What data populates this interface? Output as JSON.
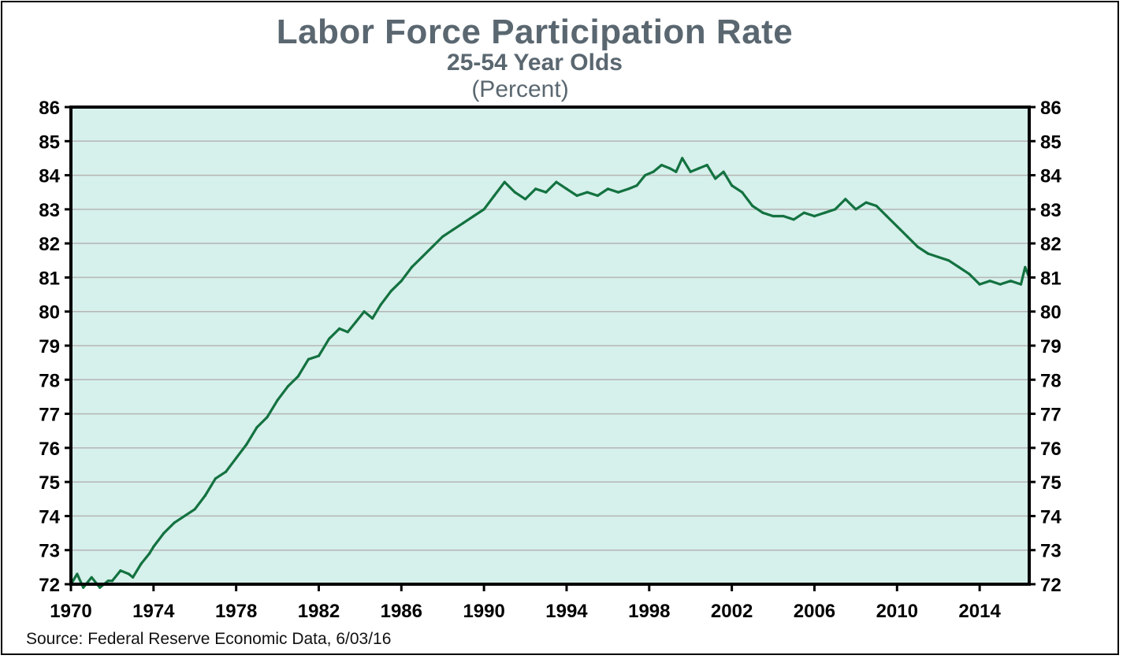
{
  "chart_data": {
    "type": "line",
    "title": "Labor Force Participation Rate",
    "subtitle": "25-54 Year Olds",
    "unit": "(Percent)",
    "source": "Source:  Federal Reserve Economic Data, 6/03/16",
    "xlim": [
      1970,
      2016.4
    ],
    "ylim": [
      72,
      86
    ],
    "x_ticks": [
      1970,
      1974,
      1978,
      1982,
      1986,
      1990,
      1994,
      1998,
      2002,
      2006,
      2010,
      2014
    ],
    "y_ticks": [
      72,
      73,
      74,
      75,
      76,
      77,
      78,
      79,
      80,
      81,
      82,
      83,
      84,
      85,
      86
    ],
    "grid": "horizontal",
    "colors": {
      "line": "#137240",
      "plot_bg": "#d6f0eb",
      "grid": "#b5b5b5",
      "title": "#5a6770"
    },
    "series": [
      {
        "x": [
          1970.0,
          1970.3,
          1970.6,
          1971.0,
          1971.4,
          1971.8,
          1972.0,
          1972.4,
          1972.8,
          1973.0,
          1973.4,
          1973.8,
          1974.0,
          1974.5,
          1975.0,
          1975.5,
          1976.0,
          1976.5,
          1977.0,
          1977.5,
          1978.0,
          1978.5,
          1979.0,
          1979.5,
          1980.0,
          1980.5,
          1981.0,
          1981.5,
          1982.0,
          1982.5,
          1983.0,
          1983.4,
          1983.8,
          1984.2,
          1984.6,
          1985.0,
          1985.5,
          1986.0,
          1986.5,
          1987.0,
          1987.5,
          1988.0,
          1988.5,
          1989.0,
          1989.5,
          1990.0,
          1990.5,
          1991.0,
          1991.5,
          1992.0,
          1992.5,
          1993.0,
          1993.5,
          1994.0,
          1994.5,
          1995.0,
          1995.5,
          1996.0,
          1996.5,
          1997.0,
          1997.4,
          1997.8,
          1998.2,
          1998.6,
          1999.0,
          1999.3,
          1999.6,
          2000.0,
          2000.4,
          2000.8,
          2001.2,
          2001.6,
          2002.0,
          2002.5,
          2003.0,
          2003.5,
          2004.0,
          2004.5,
          2005.0,
          2005.5,
          2006.0,
          2006.5,
          2007.0,
          2007.5,
          2008.0,
          2008.5,
          2009.0,
          2009.5,
          2010.0,
          2010.5,
          2011.0,
          2011.5,
          2012.0,
          2012.5,
          2013.0,
          2013.5,
          2014.0,
          2014.5,
          2015.0,
          2015.5,
          2016.0,
          2016.2,
          2016.4
        ],
        "values": [
          72.0,
          72.3,
          71.9,
          72.2,
          71.9,
          72.1,
          72.1,
          72.4,
          72.3,
          72.2,
          72.6,
          72.9,
          73.1,
          73.5,
          73.8,
          74.0,
          74.2,
          74.6,
          75.1,
          75.3,
          75.7,
          76.1,
          76.6,
          76.9,
          77.4,
          77.8,
          78.1,
          78.6,
          78.7,
          79.2,
          79.5,
          79.4,
          79.7,
          80.0,
          79.8,
          80.2,
          80.6,
          80.9,
          81.3,
          81.6,
          81.9,
          82.2,
          82.4,
          82.6,
          82.8,
          83.0,
          83.4,
          83.8,
          83.5,
          83.3,
          83.6,
          83.5,
          83.8,
          83.6,
          83.4,
          83.5,
          83.4,
          83.6,
          83.5,
          83.6,
          83.7,
          84.0,
          84.1,
          84.3,
          84.2,
          84.1,
          84.5,
          84.1,
          84.2,
          84.3,
          83.9,
          84.1,
          83.7,
          83.5,
          83.1,
          82.9,
          82.8,
          82.8,
          82.7,
          82.9,
          82.8,
          82.9,
          83.0,
          83.3,
          83.0,
          83.2,
          83.1,
          82.8,
          82.5,
          82.2,
          81.9,
          81.7,
          81.6,
          81.5,
          81.3,
          81.1,
          80.8,
          80.9,
          80.8,
          80.9,
          80.8,
          81.3,
          81.0
        ]
      }
    ]
  }
}
